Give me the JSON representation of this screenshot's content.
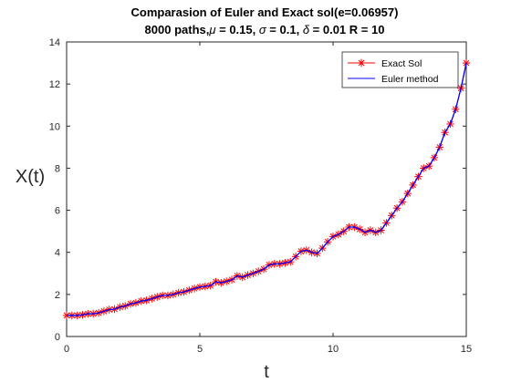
{
  "chart_data": {
    "type": "line",
    "title": "Comparasion of Euler and Exact sol(e=0.06957)",
    "subtitle_parts": {
      "prefix": "8000 paths,",
      "mu_symbol": "μ",
      "mu_text": " = 0.15, ",
      "sigma_symbol": "σ",
      "sigma_text": " = 0.1, ",
      "delta_symbol": "δ",
      "delta_text": " = 0.01 R = 10"
    },
    "xlabel": "t",
    "ylabel": "X(t)",
    "xlim": [
      0,
      15
    ],
    "ylim": [
      0,
      14
    ],
    "xticks": [
      0,
      5,
      10,
      15
    ],
    "yticks": [
      0,
      2,
      4,
      6,
      8,
      10,
      12,
      14
    ],
    "grid": false,
    "legend_position": "top-right",
    "x": [
      0,
      0.2,
      0.4,
      0.6,
      0.8,
      1.0,
      1.2,
      1.4,
      1.6,
      1.8,
      2.0,
      2.2,
      2.4,
      2.6,
      2.8,
      3.0,
      3.2,
      3.4,
      3.6,
      3.8,
      4.0,
      4.2,
      4.4,
      4.6,
      4.8,
      5.0,
      5.2,
      5.4,
      5.6,
      5.8,
      6.0,
      6.2,
      6.4,
      6.6,
      6.8,
      7.0,
      7.2,
      7.4,
      7.6,
      7.8,
      8.0,
      8.2,
      8.4,
      8.6,
      8.8,
      9.0,
      9.2,
      9.4,
      9.6,
      9.8,
      10.0,
      10.2,
      10.4,
      10.6,
      10.8,
      11.0,
      11.2,
      11.4,
      11.6,
      11.8,
      12.0,
      12.2,
      12.4,
      12.6,
      12.8,
      13.0,
      13.2,
      13.4,
      13.6,
      13.8,
      14.0,
      14.2,
      14.4,
      14.6,
      14.8,
      15.0
    ],
    "series": [
      {
        "name": "Exact Sol",
        "color": "#ff0000",
        "marker": "asterisk",
        "values": [
          1.0,
          1.0,
          1.0,
          1.03,
          1.08,
          1.08,
          1.12,
          1.2,
          1.28,
          1.3,
          1.4,
          1.45,
          1.55,
          1.6,
          1.68,
          1.72,
          1.8,
          1.88,
          1.95,
          1.95,
          2.0,
          2.08,
          2.12,
          2.2,
          2.28,
          2.35,
          2.38,
          2.42,
          2.6,
          2.55,
          2.62,
          2.7,
          2.88,
          2.82,
          2.92,
          3.0,
          3.1,
          3.2,
          3.4,
          3.45,
          3.45,
          3.5,
          3.55,
          3.8,
          4.05,
          4.1,
          4.0,
          3.95,
          4.2,
          4.5,
          4.75,
          4.85,
          5.0,
          5.2,
          5.2,
          5.1,
          4.95,
          5.05,
          4.95,
          5.05,
          5.4,
          5.75,
          6.1,
          6.4,
          6.8,
          7.2,
          7.6,
          8.0,
          8.1,
          8.5,
          9.0,
          9.7,
          10.1,
          10.8,
          11.8,
          13.0
        ]
      },
      {
        "name": "Euler method",
        "color": "#0000ff",
        "marker": "none",
        "values": [
          1.0,
          1.0,
          1.0,
          1.03,
          1.08,
          1.08,
          1.12,
          1.2,
          1.28,
          1.3,
          1.4,
          1.45,
          1.55,
          1.6,
          1.68,
          1.72,
          1.8,
          1.88,
          1.95,
          1.95,
          2.0,
          2.08,
          2.12,
          2.2,
          2.28,
          2.35,
          2.38,
          2.42,
          2.6,
          2.55,
          2.62,
          2.7,
          2.88,
          2.82,
          2.92,
          3.0,
          3.1,
          3.2,
          3.4,
          3.45,
          3.45,
          3.5,
          3.55,
          3.8,
          4.05,
          4.1,
          4.0,
          3.95,
          4.2,
          4.5,
          4.75,
          4.85,
          5.0,
          5.2,
          5.2,
          5.1,
          4.95,
          5.05,
          4.95,
          5.05,
          5.4,
          5.75,
          6.1,
          6.4,
          6.8,
          7.2,
          7.6,
          8.0,
          8.1,
          8.5,
          9.0,
          9.7,
          10.1,
          10.8,
          11.8,
          13.0
        ]
      }
    ]
  }
}
